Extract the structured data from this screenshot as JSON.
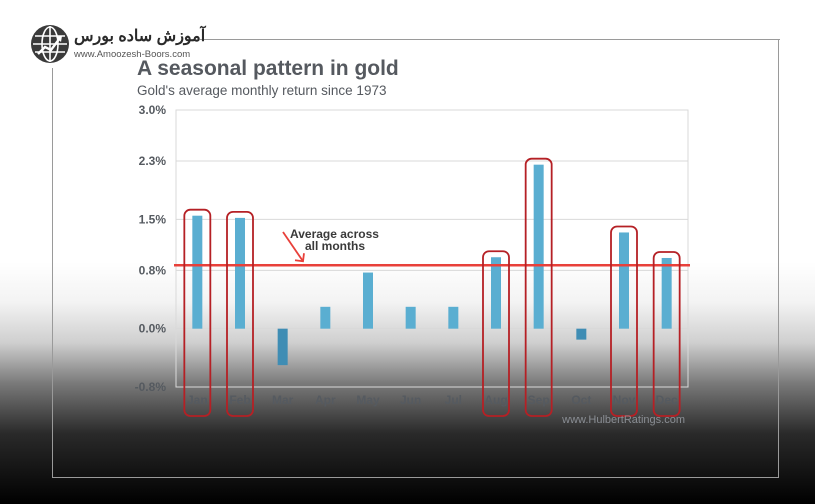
{
  "logo": {
    "title": "آموزش ساده بورس",
    "url": "www.Amoozesh-Boors.com"
  },
  "colors": {
    "bar": "#5aaed1",
    "bar_negative": "#3f8db4",
    "average_line": "#e8403a",
    "highlight": "#b52025",
    "grid": "#d9d9d9",
    "axis_text": "#555a60"
  },
  "chart_data": {
    "type": "bar",
    "title": "A seasonal pattern in gold",
    "subtitle": "Gold's average monthly return since 1973",
    "xlabel": "",
    "ylabel": "",
    "categories": [
      "Jan",
      "Feb",
      "Mar",
      "Apr",
      "May",
      "Jun",
      "Jul",
      "Aug",
      "Sep",
      "Oct",
      "Nov",
      "Dec"
    ],
    "values": [
      1.55,
      1.52,
      -0.5,
      0.3,
      0.77,
      0.3,
      0.3,
      0.98,
      2.25,
      -0.15,
      1.32,
      0.97
    ],
    "y_ticks": [
      3.0,
      2.3,
      1.5,
      0.8,
      0.0,
      -0.8
    ],
    "y_tick_labels": [
      "3.0%",
      "2.3%",
      "1.5%",
      "0.8%",
      "0.0%",
      "-0.8%"
    ],
    "ylim": [
      -0.8,
      3.0
    ],
    "grid": true,
    "average_line": {
      "value": 0.87,
      "label_line1": "Average across",
      "label_line2": "all months"
    },
    "highlighted_months": [
      "Jan",
      "Feb",
      "Aug",
      "Sep",
      "Nov",
      "Dec"
    ],
    "source": "www.HulbertRatings.com"
  }
}
